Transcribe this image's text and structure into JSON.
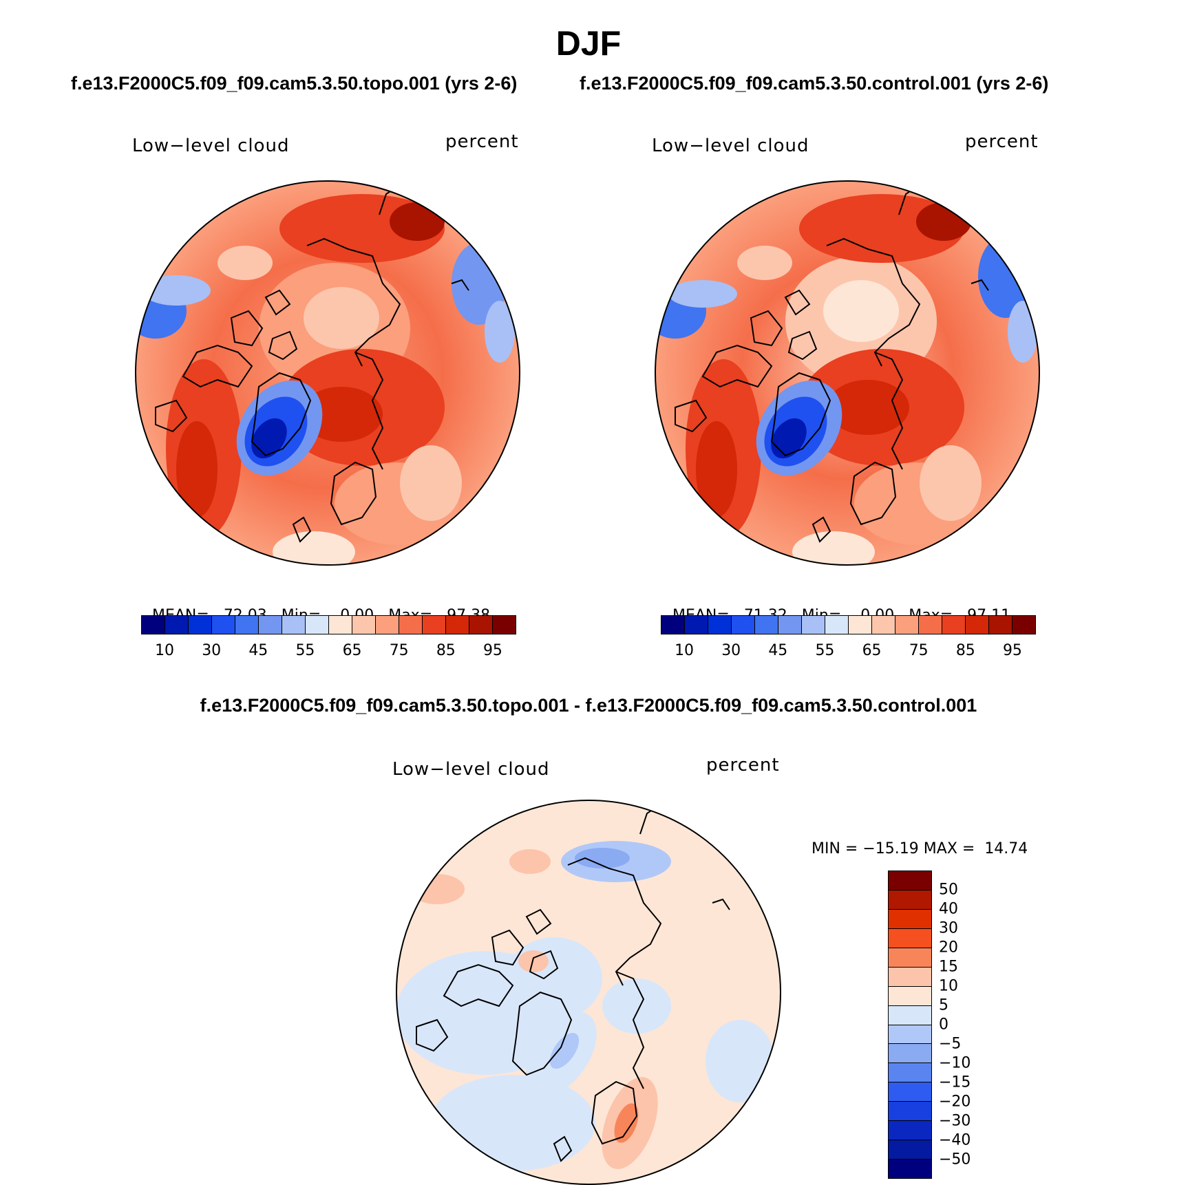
{
  "title": "DJF",
  "panels": [
    {
      "id": "topo",
      "subtitle": "f.e13.F2000C5.f09_f09.cam5.3.50.topo.001 (yrs 2-6)",
      "left_label": "Low−level cloud",
      "right_label": "percent",
      "stats": {
        "mean_label": "MEAN=",
        "mean": "72.03",
        "min_label": "Min=",
        "min": "0.00",
        "max_label": "Max=",
        "max": "97.38"
      }
    },
    {
      "id": "control",
      "subtitle": "f.e13.F2000C5.f09_f09.cam5.3.50.control.001 (yrs 2-6)",
      "left_label": "Low−level cloud",
      "right_label": "percent",
      "stats": {
        "mean_label": "MEAN=",
        "mean": "71.32",
        "min_label": "Min=",
        "min": "0.00",
        "max_label": "Max=",
        "max": "97.11"
      }
    }
  ],
  "difference": {
    "subtitle": "f.e13.F2000C5.f09_f09.cam5.3.50.topo.001 - f.e13.F2000C5.f09_f09.cam5.3.50.control.001",
    "left_label": "Low−level cloud",
    "right_label": "percent",
    "min_label": "MIN =",
    "min": "−15.19",
    "max_label": "MAX =",
    "max": "14.74"
  },
  "colorbar_abs": {
    "colors": [
      "#00007f",
      "#0019b0",
      "#0030d8",
      "#1f50f0",
      "#4074f0",
      "#7396f0",
      "#a8c0f6",
      "#d8e6fa",
      "#fde6d6",
      "#fcc6ad",
      "#fb9f7d",
      "#f56e4a",
      "#e84020",
      "#d42808",
      "#a81400",
      "#7a0000"
    ],
    "tick_labels": [
      "10",
      "30",
      "45",
      "55",
      "65",
      "75",
      "85",
      "95"
    ]
  },
  "colorbar_diff": {
    "colors": [
      "#7a0000",
      "#b01800",
      "#e03000",
      "#f55020",
      "#f8855a",
      "#fcc4ab",
      "#fde6d6",
      "#d8e6fa",
      "#b0c8f8",
      "#8aaaf2",
      "#5a84f0",
      "#2e5cf0",
      "#1840e0",
      "#0a28c0",
      "#041aa0",
      "#00007f"
    ],
    "tick_labels": [
      "50",
      "40",
      "30",
      "20",
      "15",
      "10",
      "5",
      "0",
      "−5",
      "−10",
      "−15",
      "−20",
      "−30",
      "−40",
      "−50"
    ]
  },
  "map_fill": {
    "ocean_high": "#f56e4a",
    "ocean_mid": "#fb9f7d",
    "greenland_low": "#1f50f0",
    "diff_base": "#fde6d6",
    "diff_cool": "#d8e6fa"
  }
}
